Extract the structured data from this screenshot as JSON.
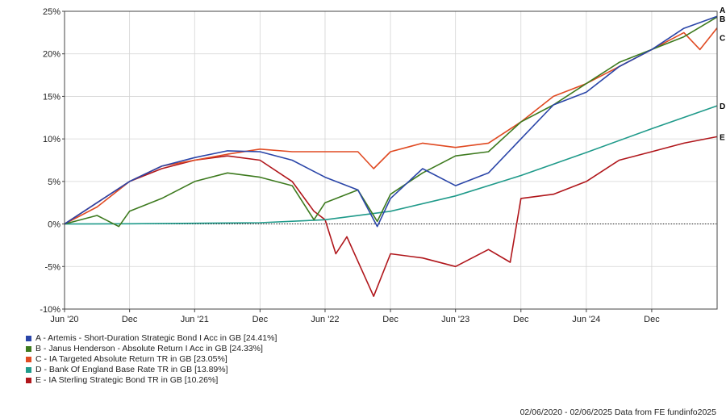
{
  "chart_data": {
    "type": "line",
    "ylim": [
      -10,
      25
    ],
    "y_ticks": [
      -10,
      -5,
      0,
      5,
      10,
      15,
      20,
      25
    ],
    "y_tick_labels": [
      "-10%",
      "-5%",
      "0%",
      "5%",
      "10%",
      "15%",
      "20%",
      "25%"
    ],
    "x_range": [
      "2020-06-02",
      "2025-06-02"
    ],
    "x_ticks": [
      {
        "date": "2020-06-01",
        "label": "Jun '20"
      },
      {
        "date": "2020-12-01",
        "label": "Dec"
      },
      {
        "date": "2021-06-01",
        "label": "Jun '21"
      },
      {
        "date": "2021-12-01",
        "label": "Dec"
      },
      {
        "date": "2022-06-01",
        "label": "Jun '22"
      },
      {
        "date": "2022-12-01",
        "label": "Dec"
      },
      {
        "date": "2023-06-01",
        "label": "Jun '23"
      },
      {
        "date": "2023-12-01",
        "label": "Dec"
      },
      {
        "date": "2024-06-01",
        "label": "Jun '24"
      },
      {
        "date": "2024-12-01",
        "label": "Dec"
      }
    ],
    "grid": true,
    "legend_position": "bottom-left",
    "series": [
      {
        "letter": "A",
        "name": "A - Artemis - Short-Duration Strategic Bond I Acc in GB [24.41%]",
        "color": "#2a45a8",
        "end_label_offset": -8,
        "dates": [
          "2020-06-02",
          "2020-09-01",
          "2020-12-01",
          "2021-03-01",
          "2021-06-01",
          "2021-09-01",
          "2021-12-01",
          "2022-03-01",
          "2022-06-01",
          "2022-09-01",
          "2022-10-25",
          "2022-12-01",
          "2023-03-01",
          "2023-06-01",
          "2023-09-01",
          "2023-12-01",
          "2024-03-01",
          "2024-06-01",
          "2024-09-01",
          "2024-12-01",
          "2025-03-01",
          "2025-06-02"
        ],
        "values": [
          0,
          2.5,
          5.0,
          6.8,
          7.8,
          8.6,
          8.5,
          7.5,
          5.5,
          4.0,
          -0.3,
          3.0,
          6.5,
          4.5,
          6.0,
          10.0,
          14.0,
          15.5,
          18.5,
          20.5,
          23.0,
          24.41
        ]
      },
      {
        "letter": "B",
        "name": "B - Janus Henderson - Absolute Return I Acc in GB [24.33%]",
        "color": "#3d7a1e",
        "end_label_offset": 2,
        "dates": [
          "2020-06-02",
          "2020-09-01",
          "2020-11-01",
          "2020-12-01",
          "2021-03-01",
          "2021-06-01",
          "2021-09-01",
          "2021-12-01",
          "2022-03-01",
          "2022-05-01",
          "2022-06-01",
          "2022-09-01",
          "2022-10-25",
          "2022-12-01",
          "2023-03-01",
          "2023-06-01",
          "2023-09-01",
          "2023-12-01",
          "2024-03-01",
          "2024-06-01",
          "2024-09-01",
          "2024-12-01",
          "2025-03-01",
          "2025-06-02"
        ],
        "values": [
          0,
          1.0,
          -0.3,
          1.5,
          3.0,
          5.0,
          6.0,
          5.5,
          4.5,
          0.5,
          2.5,
          4.0,
          0.3,
          3.5,
          6.0,
          8.0,
          8.5,
          12.0,
          14.0,
          16.5,
          19.0,
          20.5,
          22.0,
          24.33
        ]
      },
      {
        "letter": "C",
        "name": "C - IA Targeted Absolute Return TR in GB [23.05%]",
        "color": "#e04a22",
        "end_label_offset": 12,
        "dates": [
          "2020-06-02",
          "2020-09-01",
          "2020-12-01",
          "2021-03-01",
          "2021-06-01",
          "2021-09-01",
          "2021-12-01",
          "2022-03-01",
          "2022-06-01",
          "2022-09-01",
          "2022-10-15",
          "2022-12-01",
          "2023-03-01",
          "2023-06-01",
          "2023-09-01",
          "2023-12-01",
          "2024-03-01",
          "2024-06-01",
          "2024-09-01",
          "2024-12-01",
          "2025-03-01",
          "2025-04-15",
          "2025-06-02"
        ],
        "values": [
          0,
          2.0,
          5.0,
          6.8,
          7.5,
          8.2,
          8.8,
          8.5,
          8.5,
          8.5,
          6.5,
          8.5,
          9.5,
          9.0,
          9.5,
          12.0,
          15.0,
          16.5,
          18.5,
          20.5,
          22.5,
          20.5,
          23.05
        ]
      },
      {
        "letter": "D",
        "name": "D - Bank Of England Base Rate TR in GB [13.89%]",
        "color": "#1f9a8a",
        "end_label_offset": 0,
        "dates": [
          "2020-06-02",
          "2020-12-01",
          "2021-06-01",
          "2021-12-01",
          "2022-06-01",
          "2022-12-01",
          "2023-06-01",
          "2023-12-01",
          "2024-06-01",
          "2024-12-01",
          "2025-06-02"
        ],
        "values": [
          0,
          0.03,
          0.08,
          0.15,
          0.5,
          1.5,
          3.3,
          5.7,
          8.4,
          11.2,
          13.89
        ]
      },
      {
        "letter": "E",
        "name": "E - IA Sterling Strategic Bond TR in GB [10.26%]",
        "color": "#b0161b",
        "end_label_offset": 0,
        "dates": [
          "2020-06-02",
          "2020-09-01",
          "2020-12-01",
          "2021-03-01",
          "2021-06-01",
          "2021-09-01",
          "2021-12-01",
          "2022-03-01",
          "2022-05-01",
          "2022-06-01",
          "2022-07-01",
          "2022-08-01",
          "2022-10-15",
          "2022-12-01",
          "2023-03-01",
          "2023-06-01",
          "2023-09-01",
          "2023-11-01",
          "2023-12-01",
          "2024-03-01",
          "2024-06-01",
          "2024-09-01",
          "2024-12-01",
          "2025-03-01",
          "2025-06-02"
        ],
        "values": [
          0,
          2.5,
          5.0,
          6.5,
          7.5,
          8.0,
          7.5,
          5.0,
          1.5,
          0.5,
          -3.5,
          -1.5,
          -8.5,
          -3.5,
          -4.0,
          -5.0,
          -3.0,
          -4.5,
          3.0,
          3.5,
          5.0,
          7.5,
          8.5,
          9.5,
          10.26
        ]
      }
    ]
  },
  "footer": {
    "text": "02/06/2020 - 02/06/2025 Data from FE fundinfo2025"
  }
}
